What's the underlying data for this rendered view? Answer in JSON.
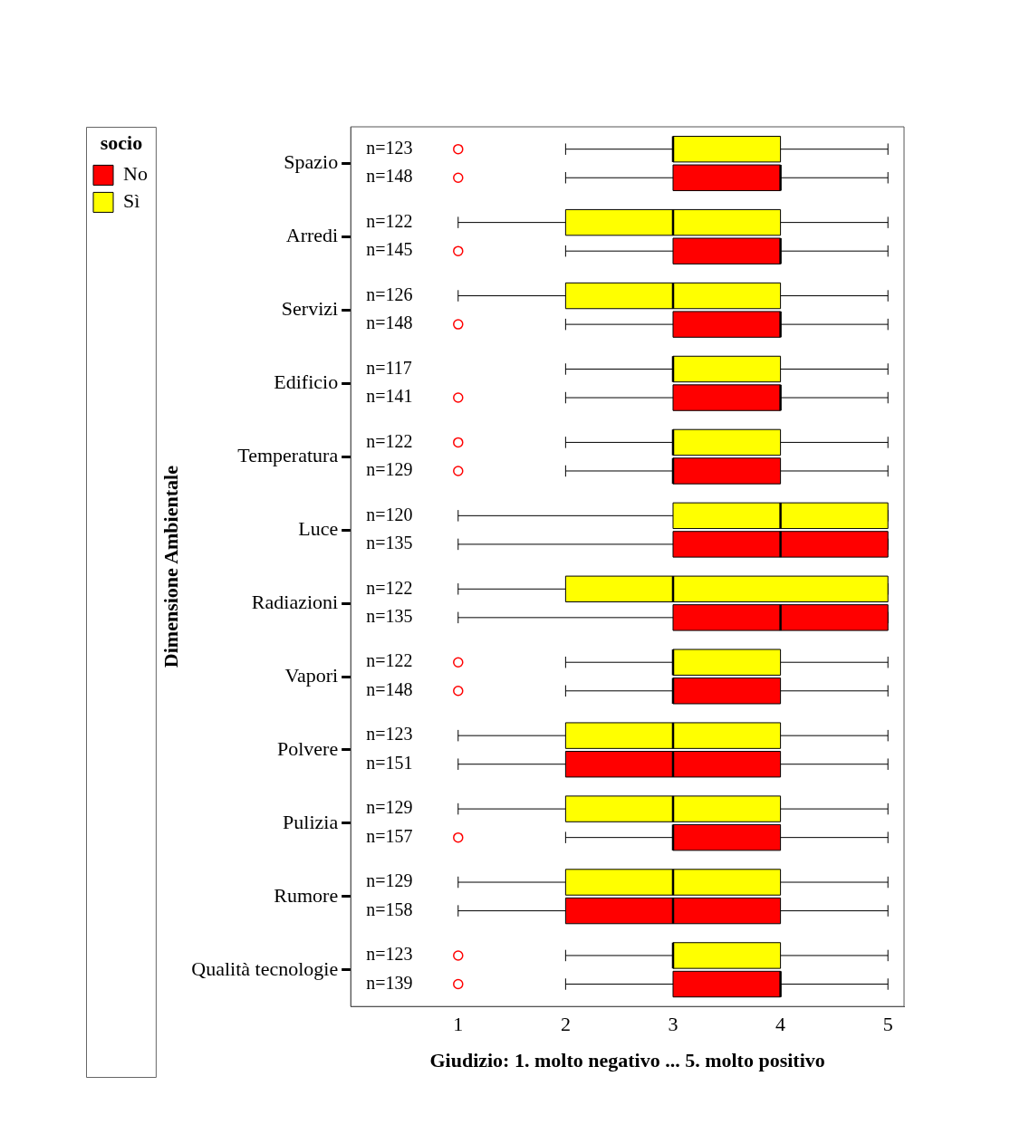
{
  "chart_data": {
    "type": "box",
    "orientation": "horizontal",
    "xlabel": "Giudizio: 1. molto negativo ... 5. molto positivo",
    "ylabel": "Dimensione Ambientale",
    "legend_title": "socio",
    "legend": "top left",
    "grid": false,
    "xlim": [
      0,
      5.15
    ],
    "xticks": [
      1,
      2,
      3,
      4,
      5
    ],
    "categories": [
      "Spazio",
      "Arredi",
      "Servizi",
      "Edificio",
      "Temperatura",
      "Luce",
      "Radiazioni",
      "Vapori",
      "Polvere",
      "Pulizia",
      "Rumore",
      "Qualità tecnologie"
    ],
    "series": [
      {
        "name": "No",
        "color": "#ff0000",
        "boxes": [
          {
            "low": 2,
            "q1": 3,
            "median": 4,
            "q3": 4,
            "high": 5,
            "outliers": [
              1
            ]
          },
          {
            "low": 2,
            "q1": 3,
            "median": 4,
            "q3": 4,
            "high": 5,
            "outliers": [
              1
            ]
          },
          {
            "low": 2,
            "q1": 3,
            "median": 4,
            "q3": 4,
            "high": 5,
            "outliers": [
              1
            ]
          },
          {
            "low": 2,
            "q1": 3,
            "median": 4,
            "q3": 4,
            "high": 5,
            "outliers": [
              1
            ]
          },
          {
            "low": 2,
            "q1": 3,
            "median": 3,
            "q3": 4,
            "high": 5,
            "outliers": [
              1
            ]
          },
          {
            "low": 1,
            "q1": 3,
            "median": 4,
            "q3": 5,
            "high": 5
          },
          {
            "low": 1,
            "q1": 3,
            "median": 4,
            "q3": 5,
            "high": 5
          },
          {
            "low": 2,
            "q1": 3,
            "median": 3,
            "q3": 4,
            "high": 5,
            "outliers": [
              1
            ]
          },
          {
            "low": 1,
            "q1": 2,
            "median": 3,
            "q3": 4,
            "high": 5
          },
          {
            "low": 2,
            "q1": 3,
            "median": 3,
            "q3": 4,
            "high": 5,
            "outliers": [
              1
            ]
          },
          {
            "low": 1,
            "q1": 2,
            "median": 3,
            "q3": 4,
            "high": 5
          },
          {
            "low": 2,
            "q1": 3,
            "median": 4,
            "q3": 4,
            "high": 5,
            "outliers": [
              1
            ]
          }
        ]
      },
      {
        "name": "Sì",
        "color": "#ffff00",
        "boxes": [
          {
            "low": 2,
            "q1": 3,
            "median": 3,
            "q3": 4,
            "high": 5,
            "outliers": [
              1
            ]
          },
          {
            "low": 1,
            "q1": 2,
            "median": 3,
            "q3": 4,
            "high": 5
          },
          {
            "low": 1,
            "q1": 2,
            "median": 3,
            "q3": 4,
            "high": 5
          },
          {
            "low": 2,
            "q1": 3,
            "median": 3,
            "q3": 4,
            "high": 5
          },
          {
            "low": 2,
            "q1": 3,
            "median": 3,
            "q3": 4,
            "high": 5,
            "outliers": [
              1
            ]
          },
          {
            "low": 1,
            "q1": 3,
            "median": 4,
            "q3": 5,
            "high": 5
          },
          {
            "low": 1,
            "q1": 2,
            "median": 3,
            "q3": 5,
            "high": 5
          },
          {
            "low": 2,
            "q1": 3,
            "median": 3,
            "q3": 4,
            "high": 5,
            "outliers": [
              1
            ]
          },
          {
            "low": 1,
            "q1": 2,
            "median": 3,
            "q3": 4,
            "high": 5
          },
          {
            "low": 1,
            "q1": 2,
            "median": 3,
            "q3": 4,
            "high": 5
          },
          {
            "low": 1,
            "q1": 2,
            "median": 3,
            "q3": 4,
            "high": 5
          },
          {
            "low": 2,
            "q1": 3,
            "median": 3,
            "q3": 4,
            "high": 5,
            "outliers": [
              1
            ]
          }
        ]
      }
    ],
    "annotations": [
      "n=148",
      "n=123",
      "n=145",
      "n=122",
      "n=148",
      "n=126",
      "n=141",
      "n=117",
      "n=129",
      "n=122",
      "n=135",
      "n=120",
      "n=135",
      "n=122",
      "n=148",
      "n=122",
      "n=151",
      "n=123",
      "n=157",
      "n=129",
      "n=158",
      "n=129",
      "n=139",
      "n=123"
    ]
  }
}
